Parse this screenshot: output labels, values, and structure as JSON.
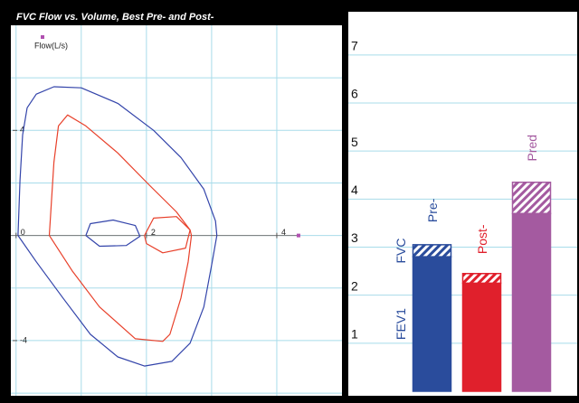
{
  "chart_data": [
    {
      "type": "line",
      "title": "FVC Flow vs. Volume, Best Pre- and Post-",
      "y_label": "Flow(L/s)",
      "marker_color": "#b050b0",
      "xlim": [
        -0.08,
        5
      ],
      "ylim": [
        -6.1,
        8
      ],
      "xticks": [
        0,
        2,
        4
      ],
      "yticks": [
        -4,
        4
      ],
      "xgrid": [
        0,
        1,
        2,
        3,
        4
      ],
      "ygrid": [
        -6,
        -4,
        -2,
        0,
        2,
        4,
        6
      ],
      "grid": true,
      "grid_color": "#a8dcea",
      "series": [
        {
          "color": "#3344aa",
          "x": [
            0.03,
            0.06,
            0.1,
            0.17,
            0.31,
            0.58,
            1.0,
            1.56,
            2.11,
            2.53,
            2.88,
            3.06,
            3.08,
            3.01,
            2.88,
            2.67,
            2.39,
            1.97,
            1.56,
            1.14,
            0.72,
            0.31,
            0.03
          ],
          "values": [
            0,
            2.1,
            3.83,
            4.86,
            5.38,
            5.66,
            5.62,
            5.03,
            4.0,
            2.97,
            1.76,
            0.55,
            0,
            -1.0,
            -2.72,
            -4.1,
            -4.79,
            -4.97,
            -4.62,
            -3.76,
            -2.38,
            -1.0,
            0
          ]
        },
        {
          "color": "#e8402a",
          "x": [
            0.51,
            0.58,
            0.65,
            0.79,
            1.07,
            1.56,
            2.04,
            2.46,
            2.67,
            2.69,
            2.64,
            2.53,
            2.36,
            2.25,
            1.83,
            1.28,
            0.86,
            0.51
          ],
          "values": [
            0,
            2.79,
            4.17,
            4.59,
            4.17,
            3.14,
            1.93,
            0.9,
            0.21,
            0,
            -1.0,
            -2.38,
            -3.76,
            -4.03,
            -3.93,
            -2.72,
            -1.34,
            0
          ]
        },
        {
          "color": "#3344aa",
          "x": [
            1.07,
            1.14,
            1.49,
            1.83,
            1.9,
            1.69,
            1.28,
            1.07
          ],
          "values": [
            0,
            0.45,
            0.59,
            0.38,
            -0.03,
            -0.38,
            -0.41,
            0
          ]
        },
        {
          "color": "#e8402a",
          "x": [
            1.97,
            2.11,
            2.46,
            2.67,
            2.6,
            2.25,
            2.0,
            1.97
          ],
          "values": [
            0,
            0.66,
            0.72,
            0.21,
            -0.48,
            -0.66,
            -0.31,
            0
          ]
        }
      ]
    },
    {
      "type": "bar",
      "stacked": true,
      "categories": [
        "Pre-",
        "Post-",
        "Pred"
      ],
      "category_colors": [
        "#2a4c9c",
        "#e0202c",
        "#a45aa0"
      ],
      "ylim": [
        0,
        7.9
      ],
      "yticks": [
        1,
        2,
        3,
        4,
        5,
        6,
        7
      ],
      "grid": true,
      "grid_color": "#a8dcea",
      "series": [
        {
          "name": "FEV1",
          "values": [
            2.8,
            2.25,
            3.7
          ],
          "pattern": "solid"
        },
        {
          "name": "FVC",
          "values": [
            0.25,
            0.2,
            0.65
          ],
          "pattern": "hatch"
        }
      ]
    }
  ]
}
